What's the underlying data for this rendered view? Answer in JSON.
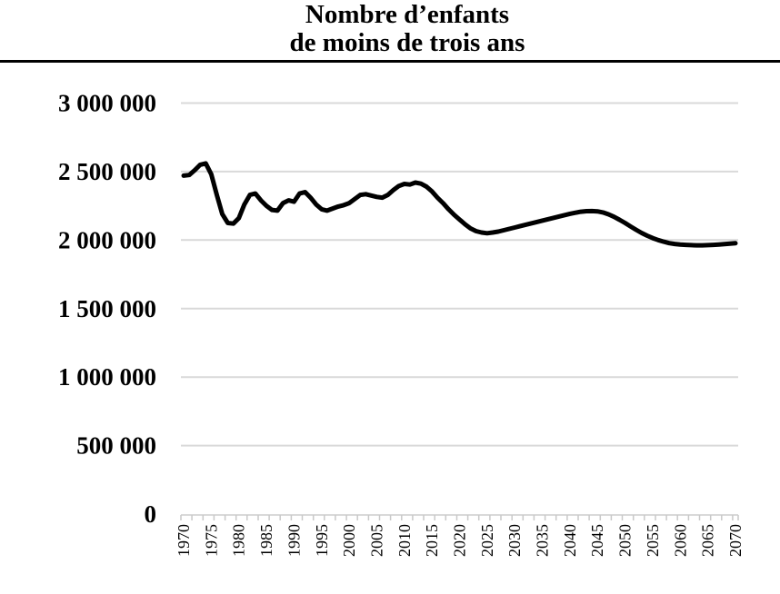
{
  "header": {
    "line1": "Nombre d’enfants",
    "line2": "de moins de trois ans"
  },
  "chart_data": {
    "type": "line",
    "title": "Nombre d’enfants de moins de trois ans",
    "xlabel": "",
    "ylabel": "",
    "ylim": [
      0,
      3000000
    ],
    "grid": "horizontal",
    "legend": "none",
    "line_color": "#000000",
    "gridline_color": "#d9d9d9",
    "axis_color": "#d9d9d9",
    "tick_color": "#c9c9c9",
    "y_ticks": [
      0,
      500000,
      1000000,
      1500000,
      2000000,
      2500000,
      3000000
    ],
    "y_tick_labels": [
      "0",
      "500 000",
      "1 000 000",
      "1 500 000",
      "2 000 000",
      "2 500 000",
      "3 000 000"
    ],
    "x_tick_labels": [
      "1970",
      "1975",
      "1980",
      "1985",
      "1990",
      "1995",
      "2000",
      "2005",
      "2010",
      "2015",
      "2020",
      "2025",
      "2030",
      "2035",
      "2040",
      "2045",
      "2050",
      "2055",
      "2060",
      "2065",
      "2070"
    ],
    "x": [
      1970,
      1971,
      1972,
      1973,
      1974,
      1975,
      1976,
      1977,
      1978,
      1979,
      1980,
      1981,
      1982,
      1983,
      1984,
      1985,
      1986,
      1987,
      1988,
      1989,
      1990,
      1991,
      1992,
      1993,
      1994,
      1995,
      1996,
      1997,
      1998,
      1999,
      2000,
      2001,
      2002,
      2003,
      2004,
      2005,
      2006,
      2007,
      2008,
      2009,
      2010,
      2011,
      2012,
      2013,
      2014,
      2015,
      2016,
      2017,
      2018,
      2019,
      2020,
      2021,
      2022,
      2023,
      2024,
      2025,
      2026,
      2027,
      2028,
      2029,
      2030,
      2031,
      2032,
      2033,
      2034,
      2035,
      2036,
      2037,
      2038,
      2039,
      2040,
      2041,
      2042,
      2043,
      2044,
      2045,
      2046,
      2047,
      2048,
      2049,
      2050,
      2051,
      2052,
      2053,
      2054,
      2055,
      2056,
      2057,
      2058,
      2059,
      2060,
      2061,
      2062,
      2063,
      2064,
      2065,
      2066,
      2067,
      2068,
      2069,
      2070
    ],
    "series": [
      {
        "name": "Nombre d’enfants de moins de trois ans",
        "values": [
          2470000,
          2475000,
          2510000,
          2550000,
          2560000,
          2480000,
          2330000,
          2190000,
          2125000,
          2120000,
          2160000,
          2260000,
          2330000,
          2340000,
          2290000,
          2250000,
          2220000,
          2215000,
          2270000,
          2290000,
          2280000,
          2340000,
          2350000,
          2310000,
          2260000,
          2225000,
          2215000,
          2230000,
          2245000,
          2255000,
          2270000,
          2300000,
          2330000,
          2335000,
          2325000,
          2315000,
          2310000,
          2330000,
          2365000,
          2395000,
          2410000,
          2405000,
          2420000,
          2412000,
          2390000,
          2355000,
          2310000,
          2270000,
          2225000,
          2185000,
          2150000,
          2115000,
          2085000,
          2065000,
          2055000,
          2050000,
          2055000,
          2062000,
          2072000,
          2082000,
          2092000,
          2102000,
          2112000,
          2122000,
          2132000,
          2142000,
          2152000,
          2162000,
          2172000,
          2182000,
          2192000,
          2200000,
          2207000,
          2211000,
          2212000,
          2210000,
          2202000,
          2188000,
          2170000,
          2148000,
          2125000,
          2100000,
          2075000,
          2052000,
          2032000,
          2015000,
          2000000,
          1988000,
          1978000,
          1972000,
          1968000,
          1965000,
          1963000,
          1962000,
          1962000,
          1963000,
          1965000,
          1968000,
          1971000,
          1974000,
          1977000
        ]
      }
    ]
  }
}
